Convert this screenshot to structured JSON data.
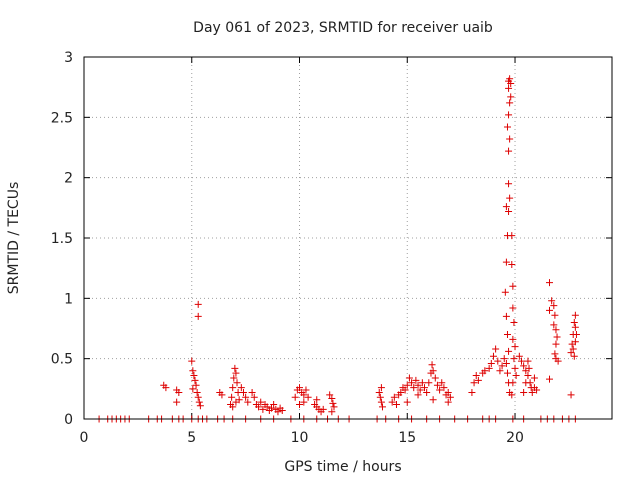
{
  "chart_data": {
    "type": "scatter",
    "title": "Day 061 of 2023, SRMTID for receiver uaib",
    "xlabel": "GPS time / hours",
    "ylabel": "SRMTID / TECUs",
    "xlim": [
      0,
      24.5
    ],
    "ylim": [
      0,
      3
    ],
    "x_ticks": [
      0,
      5,
      10,
      15,
      20
    ],
    "y_ticks": [
      0,
      0.5,
      1,
      1.5,
      2,
      2.5,
      3
    ],
    "x_tick_labels": [
      "0",
      "5",
      "10",
      "15",
      "20"
    ],
    "y_tick_labels": [
      "0",
      "0.5",
      "1",
      "1.5",
      "2",
      "2.5",
      "3"
    ],
    "grid": true,
    "marker": "+",
    "color": "#dd0000",
    "series": [
      {
        "name": "SRMTID",
        "points": [
          [
            0.7,
            0
          ],
          [
            1.1,
            0
          ],
          [
            1.3,
            0
          ],
          [
            1.5,
            0
          ],
          [
            1.7,
            0
          ],
          [
            1.9,
            0
          ],
          [
            2.1,
            0
          ],
          [
            3.0,
            0
          ],
          [
            3.4,
            0
          ],
          [
            3.6,
            0
          ],
          [
            4.1,
            0
          ],
          [
            4.4,
            0
          ],
          [
            4.6,
            0
          ],
          [
            5.0,
            0
          ],
          [
            5.3,
            0
          ],
          [
            5.5,
            0
          ],
          [
            5.7,
            0
          ],
          [
            6.2,
            0
          ],
          [
            6.5,
            0
          ],
          [
            6.9,
            0
          ],
          [
            7.5,
            0
          ],
          [
            8.2,
            0
          ],
          [
            8.8,
            0
          ],
          [
            9.6,
            0
          ],
          [
            10.2,
            0
          ],
          [
            10.8,
            0
          ],
          [
            11.3,
            0
          ],
          [
            11.8,
            0
          ],
          [
            12.3,
            0
          ],
          [
            13.6,
            0
          ],
          [
            14.0,
            0
          ],
          [
            14.6,
            0
          ],
          [
            15.2,
            0
          ],
          [
            15.9,
            0
          ],
          [
            16.5,
            0
          ],
          [
            17.2,
            0
          ],
          [
            17.8,
            0
          ],
          [
            18.5,
            0
          ],
          [
            18.8,
            0
          ],
          [
            19.1,
            0
          ],
          [
            19.9,
            0
          ],
          [
            20.4,
            0
          ],
          [
            21.2,
            0
          ],
          [
            21.5,
            0
          ],
          [
            21.8,
            0
          ],
          [
            22.2,
            0
          ],
          [
            22.5,
            0
          ],
          [
            22.8,
            0
          ],
          [
            3.7,
            0.28
          ],
          [
            3.8,
            0.26
          ],
          [
            4.3,
            0.24
          ],
          [
            4.4,
            0.22
          ],
          [
            4.3,
            0.14
          ],
          [
            5.0,
            0.48
          ],
          [
            5.05,
            0.4
          ],
          [
            5.1,
            0.36
          ],
          [
            5.15,
            0.32
          ],
          [
            5.2,
            0.28
          ],
          [
            5.25,
            0.22
          ],
          [
            5.3,
            0.18
          ],
          [
            5.35,
            0.14
          ],
          [
            5.4,
            0.11
          ],
          [
            5.05,
            0.25
          ],
          [
            5.3,
            0.95
          ],
          [
            5.3,
            0.85
          ],
          [
            6.3,
            0.22
          ],
          [
            6.4,
            0.2
          ],
          [
            6.8,
            0.12
          ],
          [
            6.85,
            0.18
          ],
          [
            6.9,
            0.26
          ],
          [
            6.95,
            0.34
          ],
          [
            7.0,
            0.42
          ],
          [
            7.05,
            0.38
          ],
          [
            7.1,
            0.3
          ],
          [
            7.15,
            0.22
          ],
          [
            7.2,
            0.16
          ],
          [
            7.3,
            0.26
          ],
          [
            7.4,
            0.22
          ],
          [
            7.5,
            0.18
          ],
          [
            7.6,
            0.14
          ],
          [
            6.9,
            0.1
          ],
          [
            7.05,
            0.14
          ],
          [
            7.8,
            0.22
          ],
          [
            7.9,
            0.18
          ],
          [
            8.0,
            0.12
          ],
          [
            8.1,
            0.1
          ],
          [
            8.2,
            0.14
          ],
          [
            8.3,
            0.08
          ],
          [
            8.4,
            0.12
          ],
          [
            8.5,
            0.1
          ],
          [
            8.6,
            0.07
          ],
          [
            8.7,
            0.09
          ],
          [
            8.8,
            0.12
          ],
          [
            8.9,
            0.08
          ],
          [
            9.0,
            0.06
          ],
          [
            9.1,
            0.09
          ],
          [
            9.2,
            0.07
          ],
          [
            9.8,
            0.18
          ],
          [
            9.9,
            0.24
          ],
          [
            10.0,
            0.26
          ],
          [
            10.1,
            0.22
          ],
          [
            10.2,
            0.2
          ],
          [
            10.3,
            0.24
          ],
          [
            10.4,
            0.18
          ],
          [
            10.0,
            0.12
          ],
          [
            10.2,
            0.14
          ],
          [
            10.7,
            0.12
          ],
          [
            10.8,
            0.1
          ],
          [
            10.9,
            0.08
          ],
          [
            11.0,
            0.06
          ],
          [
            11.1,
            0.08
          ],
          [
            10.8,
            0.16
          ],
          [
            11.4,
            0.2
          ],
          [
            11.5,
            0.17
          ],
          [
            11.55,
            0.13
          ],
          [
            11.6,
            0.1
          ],
          [
            11.5,
            0.06
          ],
          [
            13.7,
            0.22
          ],
          [
            13.75,
            0.18
          ],
          [
            13.8,
            0.14
          ],
          [
            13.85,
            0.1
          ],
          [
            13.8,
            0.26
          ],
          [
            14.3,
            0.14
          ],
          [
            14.4,
            0.18
          ],
          [
            14.5,
            0.12
          ],
          [
            14.6,
            0.2
          ],
          [
            14.7,
            0.22
          ],
          [
            14.8,
            0.26
          ],
          [
            14.9,
            0.24
          ],
          [
            15.0,
            0.28
          ],
          [
            15.1,
            0.34
          ],
          [
            15.2,
            0.3
          ],
          [
            15.3,
            0.26
          ],
          [
            15.4,
            0.32
          ],
          [
            15.5,
            0.28
          ],
          [
            15.6,
            0.24
          ],
          [
            15.7,
            0.3
          ],
          [
            15.8,
            0.26
          ],
          [
            15.9,
            0.22
          ],
          [
            16.0,
            0.3
          ],
          [
            16.1,
            0.38
          ],
          [
            16.15,
            0.45
          ],
          [
            16.2,
            0.4
          ],
          [
            16.3,
            0.34
          ],
          [
            16.4,
            0.28
          ],
          [
            16.5,
            0.24
          ],
          [
            16.6,
            0.3
          ],
          [
            16.7,
            0.26
          ],
          [
            16.8,
            0.2
          ],
          [
            16.9,
            0.22
          ],
          [
            17.0,
            0.18
          ],
          [
            15.0,
            0.14
          ],
          [
            15.5,
            0.2
          ],
          [
            16.2,
            0.16
          ],
          [
            16.9,
            0.14
          ],
          [
            18.0,
            0.22
          ],
          [
            18.1,
            0.3
          ],
          [
            18.2,
            0.36
          ],
          [
            18.3,
            0.32
          ],
          [
            18.5,
            0.38
          ],
          [
            18.6,
            0.4
          ],
          [
            18.8,
            0.42
          ],
          [
            18.9,
            0.46
          ],
          [
            19.0,
            0.52
          ],
          [
            19.1,
            0.58
          ],
          [
            19.2,
            0.48
          ],
          [
            19.3,
            0.4
          ],
          [
            19.4,
            0.44
          ],
          [
            19.5,
            0.5
          ],
          [
            19.6,
            0.46
          ],
          [
            19.65,
            0.38
          ],
          [
            19.7,
            0.3
          ],
          [
            19.75,
            0.22
          ],
          [
            19.7,
            0.56
          ],
          [
            19.55,
            1.05
          ],
          [
            19.6,
            0.85
          ],
          [
            19.65,
            0.7
          ],
          [
            19.6,
            1.3
          ],
          [
            19.65,
            1.52
          ],
          [
            19.6,
            1.76
          ],
          [
            19.7,
            1.72
          ],
          [
            19.75,
            1.83
          ],
          [
            19.7,
            1.95
          ],
          [
            19.7,
            2.22
          ],
          [
            19.75,
            2.32
          ],
          [
            19.65,
            2.42
          ],
          [
            19.7,
            2.52
          ],
          [
            19.75,
            2.62
          ],
          [
            19.7,
            2.74
          ],
          [
            19.7,
            2.8
          ],
          [
            19.75,
            2.82
          ],
          [
            19.8,
            2.78
          ],
          [
            19.8,
            2.67
          ],
          [
            19.85,
            1.52
          ],
          [
            19.85,
            1.28
          ],
          [
            19.9,
            1.1
          ],
          [
            19.9,
            0.92
          ],
          [
            19.95,
            0.8
          ],
          [
            19.9,
            0.66
          ],
          [
            20.0,
            0.6
          ],
          [
            19.95,
            0.5
          ],
          [
            20.0,
            0.42
          ],
          [
            20.05,
            0.36
          ],
          [
            19.9,
            0.3
          ],
          [
            19.85,
            0.2
          ],
          [
            20.2,
            0.52
          ],
          [
            20.3,
            0.48
          ],
          [
            20.4,
            0.44
          ],
          [
            20.5,
            0.4
          ],
          [
            20.6,
            0.36
          ],
          [
            20.7,
            0.3
          ],
          [
            20.75,
            0.26
          ],
          [
            20.8,
            0.22
          ],
          [
            20.65,
            0.42
          ],
          [
            20.5,
            0.3
          ],
          [
            20.4,
            0.22
          ],
          [
            20.6,
            0.48
          ],
          [
            20.9,
            0.26
          ],
          [
            21.0,
            0.24
          ],
          [
            20.9,
            0.34
          ],
          [
            21.6,
            1.13
          ],
          [
            21.6,
            0.9
          ],
          [
            21.7,
            0.98
          ],
          [
            21.8,
            0.94
          ],
          [
            21.85,
            0.86
          ],
          [
            21.8,
            0.78
          ],
          [
            21.9,
            0.74
          ],
          [
            21.95,
            0.68
          ],
          [
            21.9,
            0.62
          ],
          [
            21.85,
            0.54
          ],
          [
            21.9,
            0.5
          ],
          [
            22.0,
            0.48
          ],
          [
            21.6,
            0.33
          ],
          [
            22.6,
            0.2
          ],
          [
            22.6,
            0.55
          ],
          [
            22.65,
            0.62
          ],
          [
            22.7,
            0.7
          ],
          [
            22.75,
            0.8
          ],
          [
            22.8,
            0.86
          ],
          [
            22.8,
            0.76
          ],
          [
            22.85,
            0.7
          ],
          [
            22.7,
            0.58
          ],
          [
            22.75,
            0.52
          ],
          [
            22.8,
            0.64
          ]
        ]
      }
    ]
  }
}
